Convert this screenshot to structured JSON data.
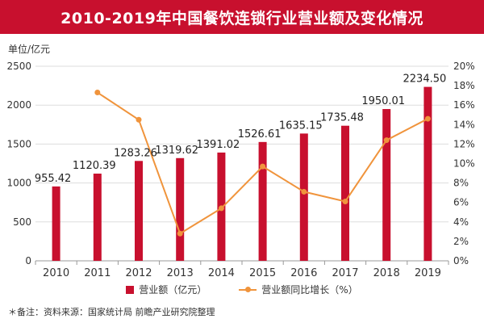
{
  "title": "2010-2019年中国餐饮连锁行业营业额及变化情况",
  "unit_label": "单位/亿元",
  "legend": {
    "bar_label": "营业额（亿元）",
    "line_label": "营业额同比增长（%）"
  },
  "note": "＊备注：资料来源：国家统计局 前瞻产业研究院整理",
  "colors": {
    "bar": "#c8102e",
    "line": "#f0943c",
    "grid": "#dddddd"
  },
  "chart_data": {
    "type": "bar",
    "categories": [
      "2010",
      "2011",
      "2012",
      "2013",
      "2014",
      "2015",
      "2016",
      "2017",
      "2018",
      "2019"
    ],
    "series": [
      {
        "name": "营业额（亿元）",
        "type": "bar",
        "axis": "left",
        "values": [
          955.42,
          1120.39,
          1283.26,
          1319.62,
          1391.02,
          1526.61,
          1635.15,
          1735.48,
          1950.01,
          2234.5
        ],
        "labels": [
          "955.42",
          "1120.39",
          "1283.26",
          "1319.62",
          "1391.02",
          "1526.61",
          "1635.15",
          "1735.48",
          "1950.01",
          "2234.50"
        ]
      },
      {
        "name": "营业额同比增长（%）",
        "type": "line",
        "axis": "right",
        "values": [
          null,
          17.3,
          14.5,
          2.8,
          5.4,
          9.7,
          7.1,
          6.1,
          12.4,
          14.6
        ]
      }
    ],
    "y_left": {
      "lim": [
        0,
        2500
      ],
      "ticks": [
        "0",
        "500",
        "1000",
        "1500",
        "2000",
        "2500"
      ]
    },
    "y_right": {
      "lim": [
        0,
        20
      ],
      "ticks": [
        "0%",
        "2%",
        "4%",
        "6%",
        "8%",
        "10%",
        "12%",
        "14%",
        "16%",
        "18%",
        "20%"
      ]
    },
    "grid": true
  }
}
